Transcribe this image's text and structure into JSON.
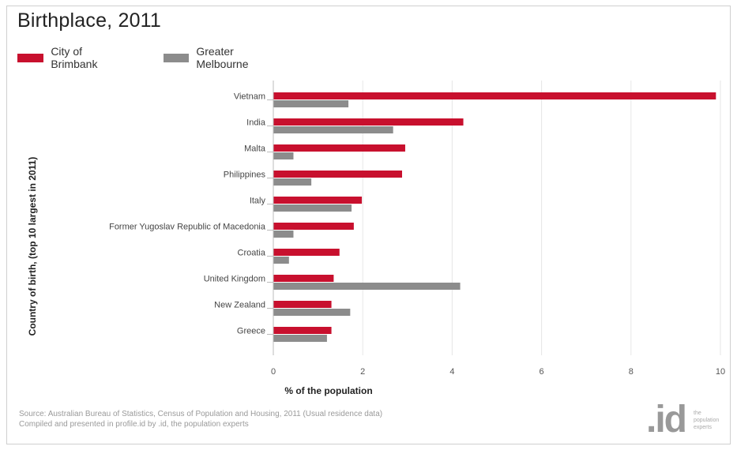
{
  "title": "Birthplace, 2011",
  "legend": [
    {
      "label": "City of Brimbank",
      "color": "#c8102e"
    },
    {
      "label": "Greater Melbourne",
      "color": "#8c8c8c"
    }
  ],
  "chart_data": {
    "type": "bar",
    "orientation": "horizontal",
    "categories": [
      "Vietnam",
      "India",
      "Malta",
      "Philippines",
      "Italy",
      "Former Yugoslav Republic of Macedonia",
      "Croatia",
      "United Kingdom",
      "New Zealand",
      "Greece"
    ],
    "series": [
      {
        "name": "City of Brimbank",
        "color": "#c8102e",
        "values": [
          9.9,
          4.25,
          2.95,
          2.88,
          1.98,
          1.8,
          1.48,
          1.35,
          1.3,
          1.3
        ]
      },
      {
        "name": "Greater Melbourne",
        "color": "#8c8c8c",
        "values": [
          1.68,
          2.68,
          0.45,
          0.85,
          1.75,
          0.45,
          0.35,
          4.18,
          1.72,
          1.2
        ]
      }
    ],
    "xlabel": "% of the population",
    "ylabel": "Country of birth, (top 10 largest in 2011)",
    "xlim": [
      0,
      10
    ],
    "xticks": [
      0,
      2,
      4,
      6,
      8,
      10
    ],
    "grid": "vertical",
    "legend_position": "top-left"
  },
  "source": {
    "line1": "Source: Australian Bureau of Statistics, Census of Population and Housing, 2011 (Usual residence data)",
    "line2": "Compiled and presented in profile.id by .id, the population experts"
  },
  "logo": {
    "mark": ".id",
    "tagline": "the population experts"
  }
}
